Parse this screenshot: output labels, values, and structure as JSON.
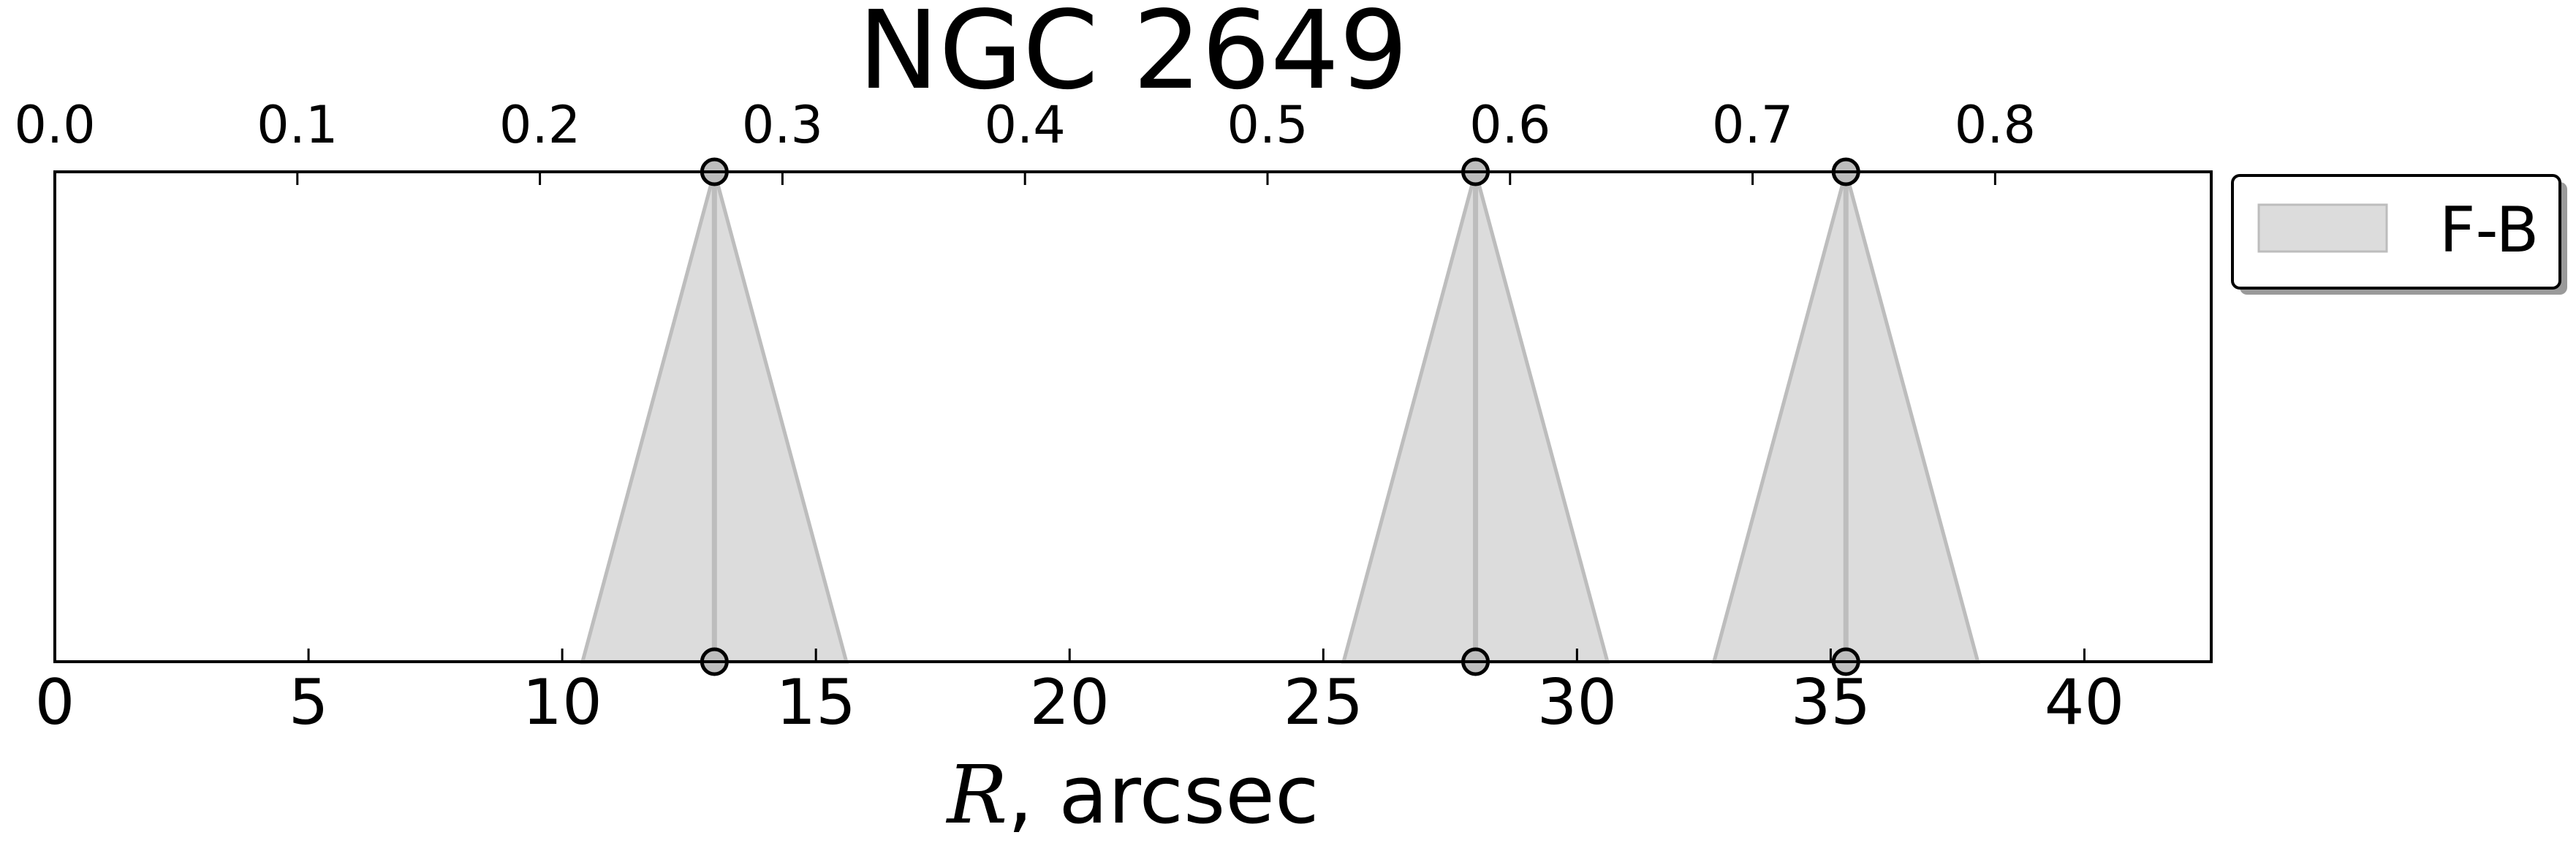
{
  "chart_data": {
    "type": "area",
    "title": "NGC 2649",
    "xlabel_symbol": "R",
    "xlabel_text": ", arcsec",
    "xlim": [
      0,
      42.5
    ],
    "xticks": [
      0,
      5,
      10,
      15,
      20,
      25,
      30,
      35,
      40
    ],
    "top_axis": {
      "ticks": [
        0.0,
        0.1,
        0.2,
        0.3,
        0.4,
        0.5,
        0.6,
        0.7,
        0.8
      ],
      "tick_labels": [
        "0.0",
        "0.1",
        "0.2",
        "0.3",
        "0.4",
        "0.5",
        "0.6",
        "0.7",
        "0.8"
      ],
      "scale_per_arcsec": 0.02092
    },
    "grid": false,
    "legend": {
      "placement": "outside-right-top",
      "entries": [
        "F-B"
      ]
    },
    "series": [
      {
        "name": "F-B",
        "color": "#bdbdbd",
        "fill_color": "#dcdcdc",
        "features": [
          {
            "center": 13.0,
            "left": 10.4,
            "right": 15.6
          },
          {
            "center": 28.0,
            "left": 25.4,
            "right": 30.6
          },
          {
            "center": 35.3,
            "left": 32.7,
            "right": 37.9
          }
        ]
      }
    ]
  }
}
